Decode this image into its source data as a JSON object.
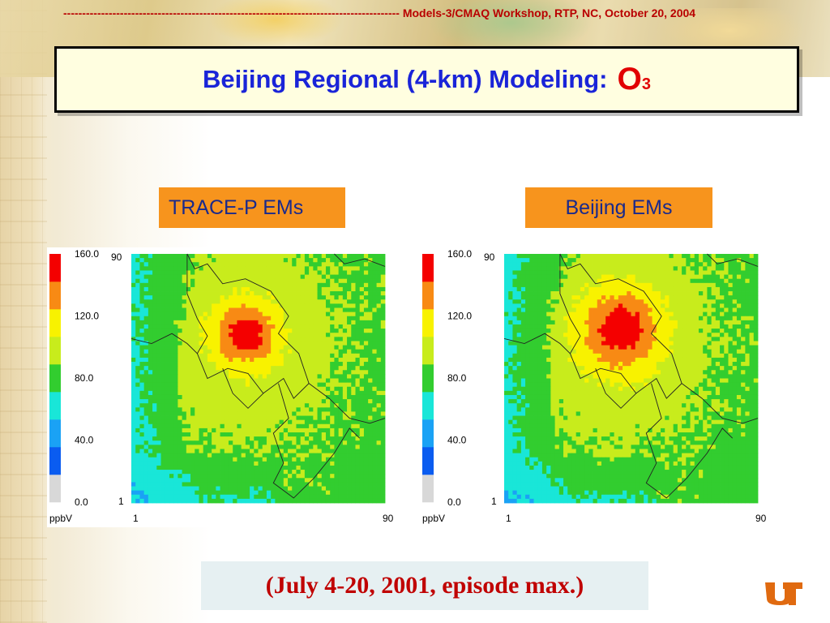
{
  "header": {
    "dashes": "-----------------------------------------------------------------------------------------",
    "text": "Models-3/CMAQ Workshop, RTP, NC, October 20, 2004"
  },
  "title": {
    "main": "Beijing Regional (4-km) Modeling:",
    "species": "O",
    "subscript": "3"
  },
  "labels": {
    "left": "TRACE-P EMs",
    "right": "Beijing EMs"
  },
  "footer": {
    "text": "(July 4-20, 2001, episode max.)"
  },
  "colors": {
    "accent_label": "#f7941d",
    "title": "#1a24d8",
    "header": "#b90000",
    "footer_text": "#c00000"
  },
  "chart_data": [
    {
      "type": "heatmap",
      "title": "TRACE-P EMs",
      "unit": "ppbV",
      "colorbar": {
        "levels": [
          0,
          20,
          40,
          60,
          80,
          100,
          120,
          140,
          160
        ],
        "tick_labels": [
          "160.0",
          "120.0",
          "80.0",
          "40.0",
          "0.0"
        ],
        "tick_values": [
          160,
          120,
          80,
          40,
          0
        ],
        "colors": [
          "#d8d8d8",
          "#0a5cf0",
          "#1aa2f5",
          "#19e6d8",
          "#32cd2f",
          "#c8ec1c",
          "#f8f200",
          "#f88a14",
          "#f40000"
        ]
      },
      "x_ticks": [
        "1",
        "90"
      ],
      "y_ticks": [
        "1",
        "90"
      ],
      "xlim": [
        1,
        90
      ],
      "ylim": [
        1,
        90
      ],
      "grid": false,
      "max_region": "north-central",
      "max_band": "140-160"
    },
    {
      "type": "heatmap",
      "title": "Beijing EMs",
      "unit": "ppbV",
      "colorbar": {
        "levels": [
          0,
          20,
          40,
          60,
          80,
          100,
          120,
          140,
          160
        ],
        "tick_labels": [
          "160.0",
          "120.0",
          "80.0",
          "40.0",
          "0.0"
        ],
        "tick_values": [
          160,
          120,
          80,
          40,
          0
        ],
        "colors": [
          "#d8d8d8",
          "#0a5cf0",
          "#1aa2f5",
          "#19e6d8",
          "#32cd2f",
          "#c8ec1c",
          "#f8f200",
          "#f88a14",
          "#f40000"
        ]
      },
      "x_ticks": [
        "1",
        "90"
      ],
      "y_ticks": [
        "1",
        "90"
      ],
      "xlim": [
        1,
        90
      ],
      "ylim": [
        1,
        90
      ],
      "grid": false,
      "max_region": "north-central",
      "max_band": "140-160"
    }
  ]
}
